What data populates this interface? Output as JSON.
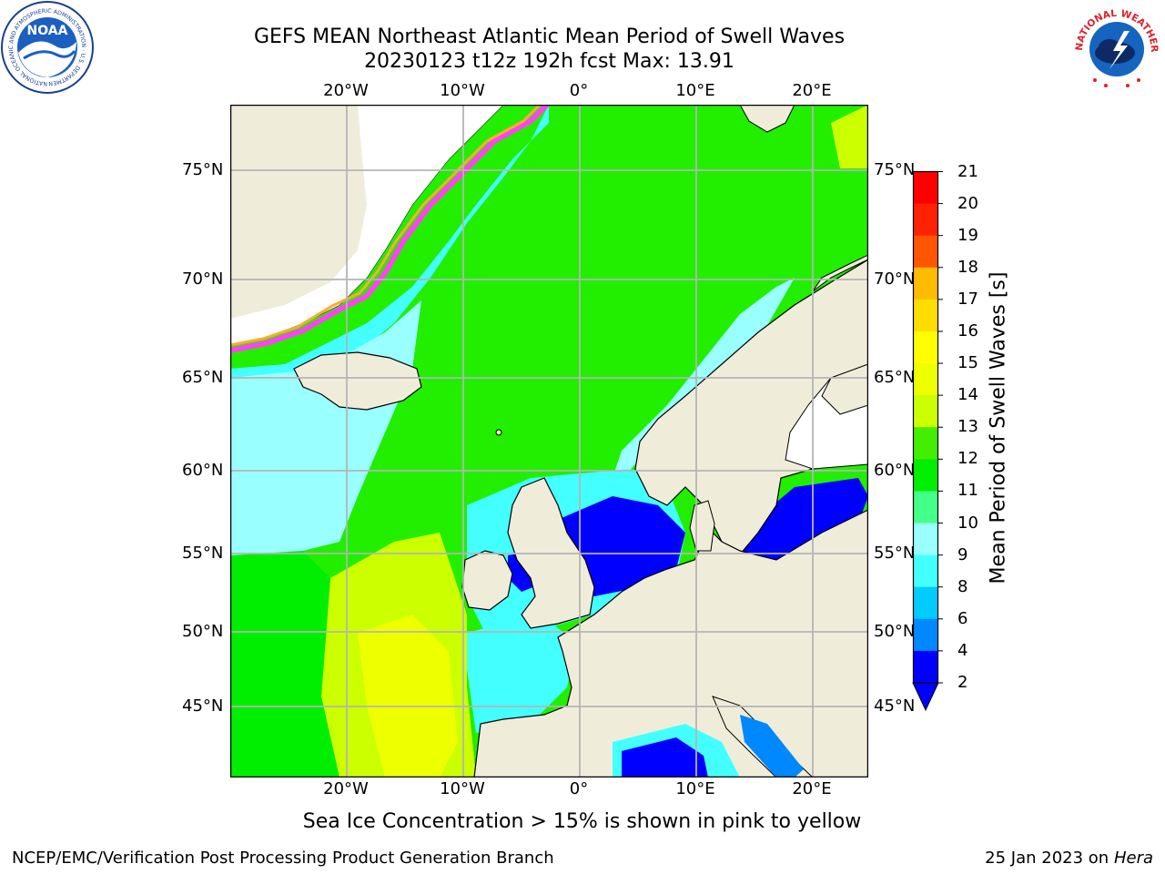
{
  "title": {
    "line1": "GEFS MEAN Northeast Atlantic Mean Period of Swell Waves",
    "line2": "20230123 t12z 192h fcst   Max: 13.91"
  },
  "map": {
    "lon_labels": [
      "20°W",
      "10°W",
      "0°",
      "10°E",
      "20°E"
    ],
    "lat_labels": [
      "75°N",
      "70°N",
      "65°N",
      "60°N",
      "55°N",
      "50°N",
      "45°N"
    ],
    "lon_range": [
      -30,
      25
    ],
    "lat_range": [
      41,
      78
    ],
    "colors": {
      "land": "#efedda",
      "ice": "#ffffff",
      "grid": "#b4b4b4",
      "coast": "#000000",
      "ice_pink": "#ff44ee",
      "ice_orange": "#ffaa33",
      "ice_yellow": "#ffee22"
    }
  },
  "colorbar": {
    "label": "Mean Period of Swell Waves [s]",
    "ticks": [
      "2",
      "4",
      "6",
      "8",
      "9",
      "10",
      "11",
      "12",
      "13",
      "14",
      "15",
      "16",
      "17",
      "18",
      "19",
      "20",
      "21"
    ],
    "colors": [
      "#0000ff",
      "#0088ff",
      "#00ccff",
      "#00ffff",
      "#44ffff",
      "#99ffff",
      "#44ff88",
      "#00ee00",
      "#44ee00",
      "#88ee00",
      "#ccff00",
      "#eeff00",
      "#ffff00",
      "#ffdd00",
      "#ffbb00",
      "#ff8800",
      "#ff5500",
      "#ff2200",
      "#ff0000"
    ]
  },
  "note": "Sea Ice Concentration > 15% is shown in pink to yellow",
  "footer": {
    "left": "NCEP/EMC/Verification Post Processing Product Generation Branch",
    "right_prefix": "25 Jan 2023 on ",
    "right_host": "Hera"
  },
  "logos": {
    "noaa_text": "NOAA",
    "noaa_ring": "NATIONAL OCEANIC AND ATMOSPHERIC ADMINISTRATION · U.S. DEPARTMENT OF COMMERCE ·",
    "nws_ring": "NATIONAL WEATHER SERVICE"
  }
}
